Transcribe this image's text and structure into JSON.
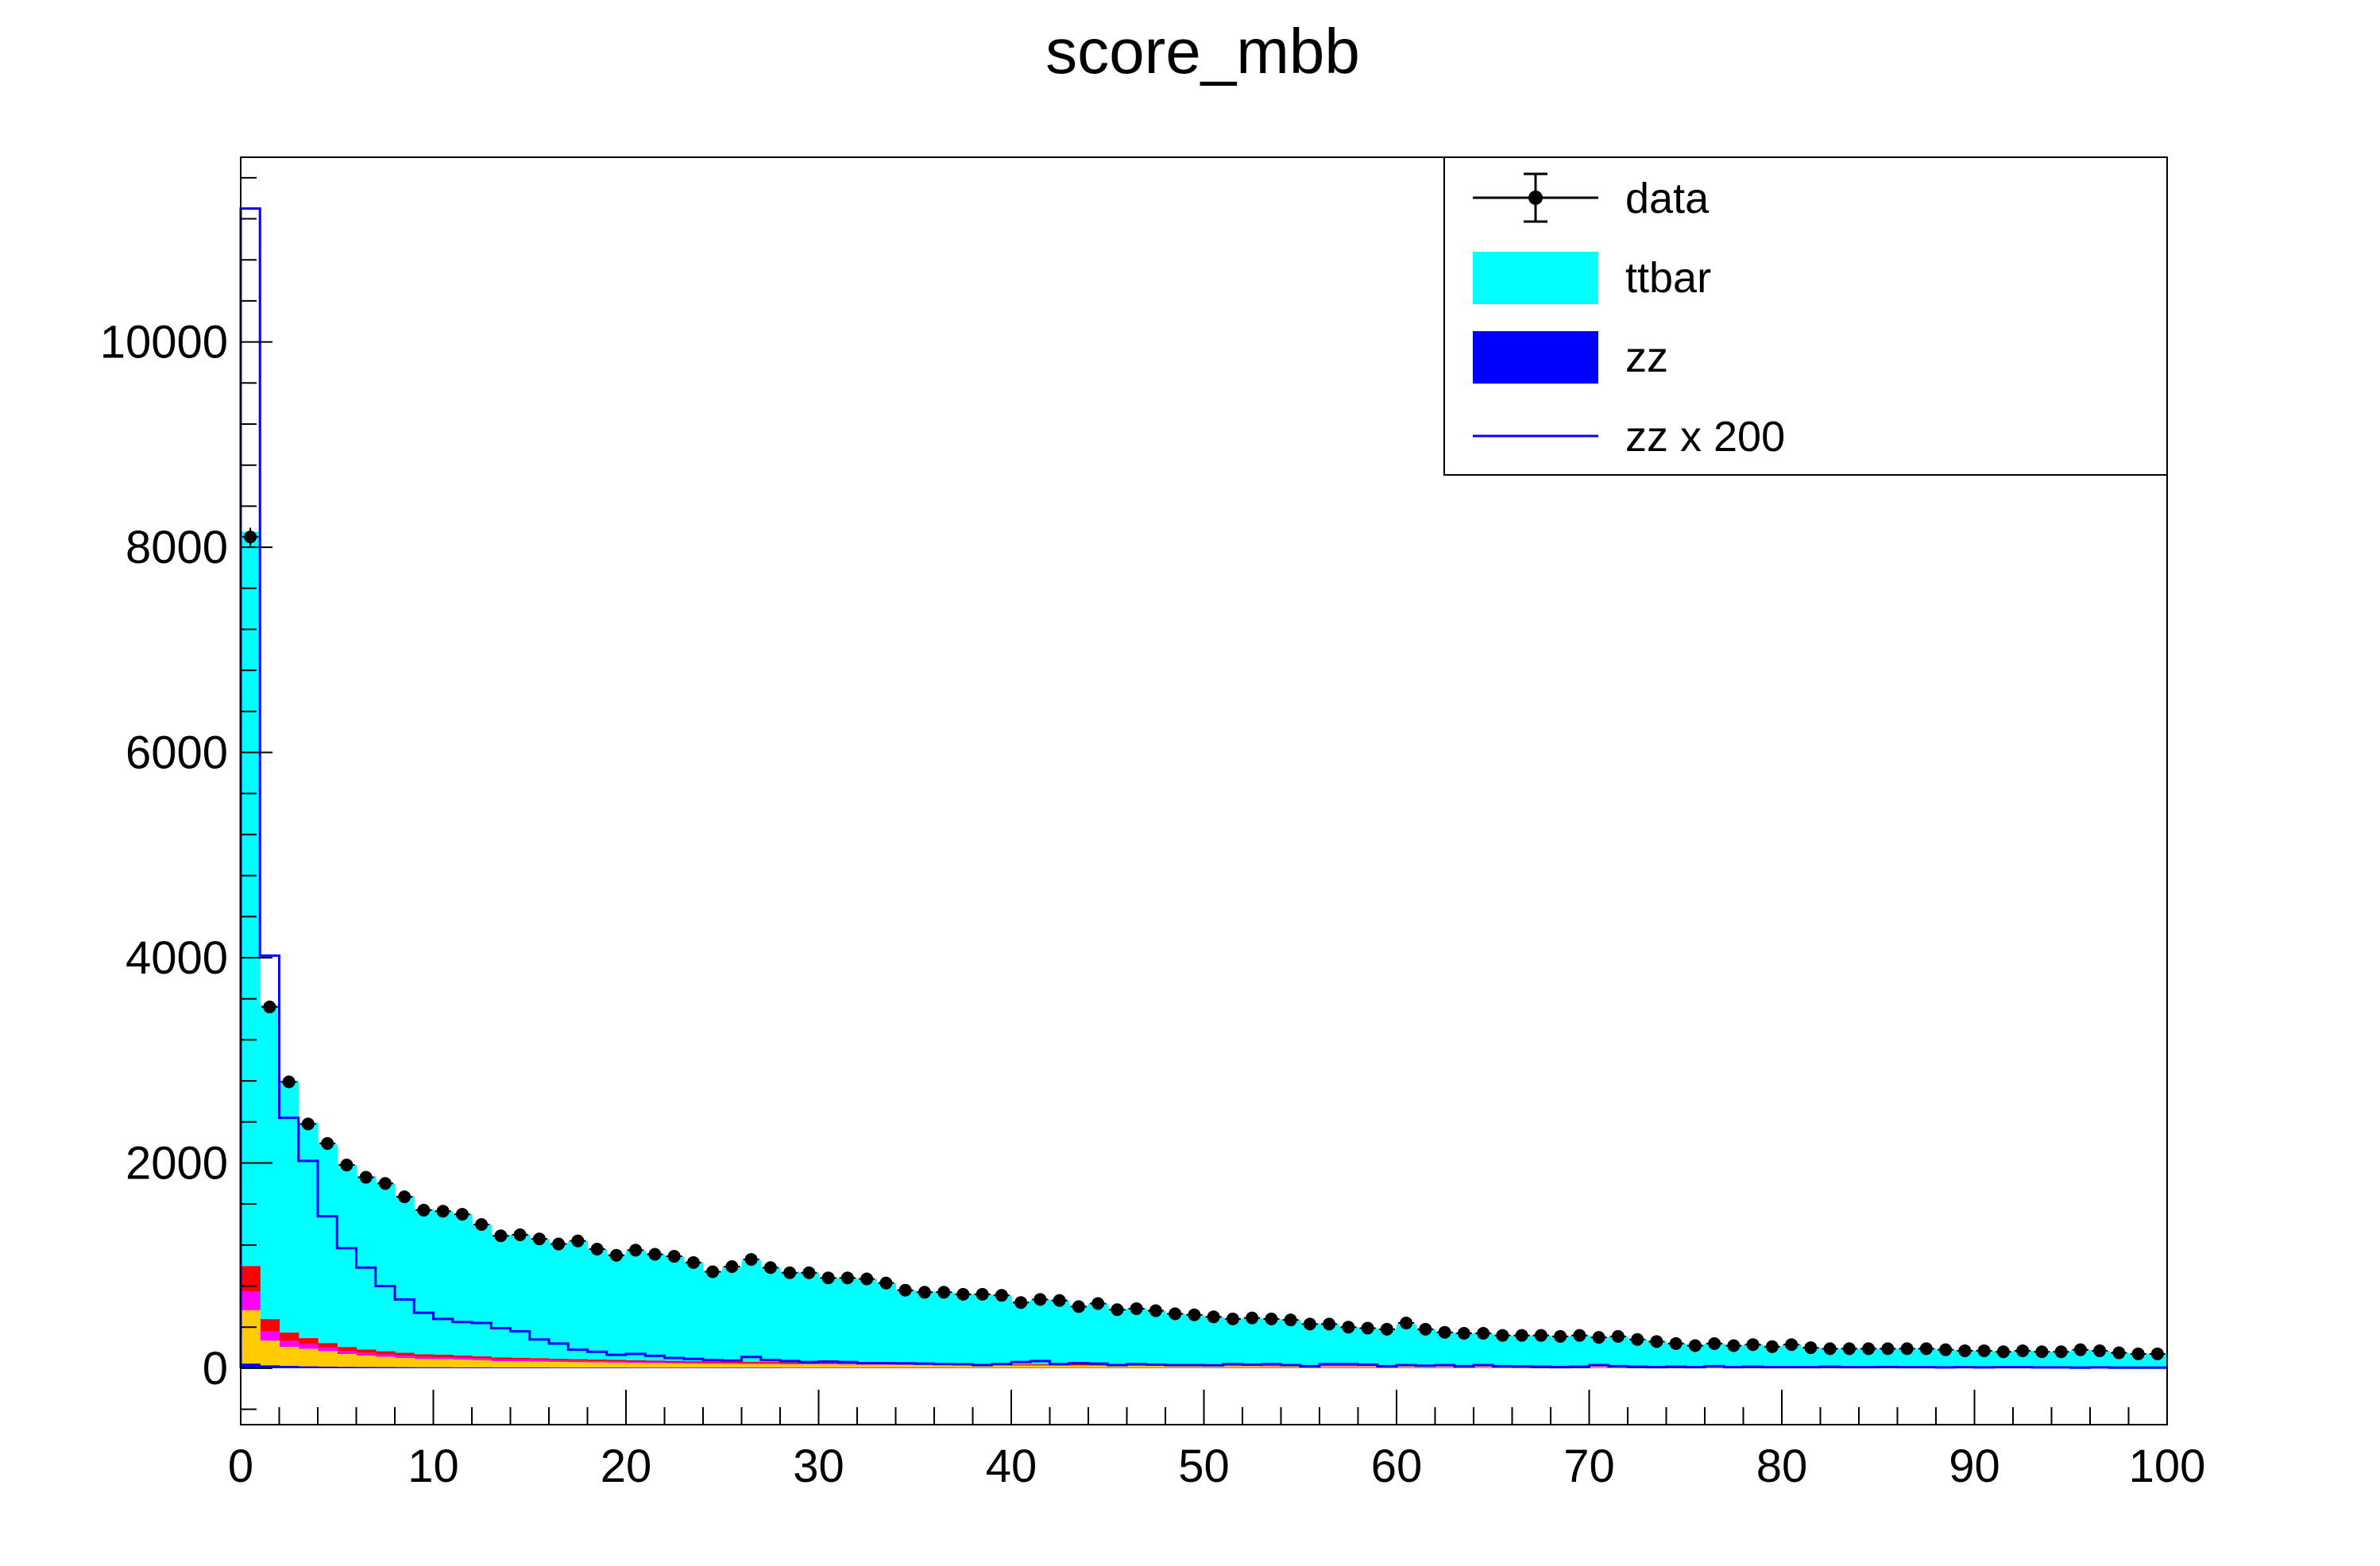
{
  "chart_data": {
    "type": "bar",
    "title": "score_mbb",
    "xlabel": "",
    "ylabel": "",
    "xlim": [
      0,
      100
    ],
    "ylim": [
      -550,
      11800
    ],
    "bin_width": 1,
    "x_ticks": [
      "0",
      "10",
      "20",
      "30",
      "40",
      "50",
      "60",
      "70",
      "80",
      "90",
      "100"
    ],
    "y_ticks": [
      "0",
      "2000",
      "4000",
      "6000",
      "8000",
      "10000"
    ],
    "legend_position": "top-right",
    "legend": [
      {
        "label": "data",
        "style": "marker"
      },
      {
        "label": "ttbar",
        "style": "fill"
      },
      {
        "label": "zz",
        "style": "fill"
      },
      {
        "label": "zz x 200",
        "style": "line"
      }
    ],
    "colors": {
      "ttbar": "#00ffff",
      "zz": "#0000ff",
      "zz_x200": "#0000ff",
      "red": "#ff0000",
      "magenta": "#ff00ff",
      "orange": "#ffcc00",
      "data": "#000000"
    },
    "data": [
      8100,
      3520,
      2790,
      2380,
      2190,
      1980,
      1860,
      1800,
      1670,
      1540,
      1530,
      1500,
      1400,
      1290,
      1300,
      1260,
      1210,
      1240,
      1160,
      1100,
      1150,
      1110,
      1090,
      1030,
      940,
      990,
      1060,
      980,
      930,
      930,
      880,
      880,
      870,
      830,
      760,
      740,
      740,
      720,
      720,
      710,
      640,
      670,
      660,
      600,
      630,
      570,
      580,
      560,
      530,
      520,
      500,
      480,
      490,
      480,
      470,
      430,
      430,
      400,
      390,
      380,
      440,
      380,
      350,
      340,
      340,
      320,
      320,
      320,
      310,
      320,
      300,
      310,
      280,
      260,
      240,
      220,
      240,
      220,
      230,
      210,
      230,
      200,
      190,
      190,
      190,
      190,
      190,
      190,
      180,
      170,
      170,
      160,
      170,
      160,
      160,
      180,
      170,
      150,
      140,
      140
    ],
    "stack": {
      "zz": [
        45,
        28,
        22,
        18,
        15,
        13,
        12,
        11,
        10,
        9,
        9,
        8,
        8,
        7,
        7,
        7,
        6,
        6,
        6,
        6,
        5,
        5,
        5,
        5,
        5,
        5,
        5,
        5,
        4,
        4,
        4,
        4,
        4,
        4,
        4,
        4,
        4,
        3,
        3,
        3,
        3,
        3,
        3,
        3,
        3,
        3,
        3,
        3,
        3,
        3,
        3,
        3,
        3,
        3,
        3,
        3,
        3,
        3,
        3,
        3,
        3,
        3,
        3,
        3,
        3,
        3,
        3,
        3,
        3,
        3,
        3,
        3,
        3,
        3,
        3,
        3,
        3,
        3,
        3,
        3,
        3,
        3,
        3,
        3,
        3,
        3,
        3,
        3,
        3,
        3,
        3,
        3,
        3,
        3,
        3,
        3,
        3,
        3,
        3,
        3
      ],
      "orange": [
        520,
        240,
        185,
        170,
        150,
        125,
        110,
        100,
        90,
        80,
        80,
        75,
        70,
        62,
        60,
        58,
        55,
        52,
        50,
        48,
        46,
        44,
        42,
        40,
        38,
        37,
        36,
        35,
        34,
        33,
        32,
        31,
        30,
        29,
        28,
        27,
        26,
        25,
        24,
        23,
        22,
        22,
        21,
        21,
        20,
        20,
        19,
        19,
        18,
        18,
        17,
        17,
        17,
        16,
        16,
        16,
        15,
        15,
        15,
        14,
        14,
        14,
        13,
        13,
        13,
        12,
        12,
        12,
        12,
        11,
        11,
        11,
        11,
        10,
        10,
        10,
        10,
        10,
        9,
        9,
        9,
        9,
        9,
        8,
        8,
        8,
        8,
        8,
        8,
        7,
        7,
        7,
        7,
        7,
        7,
        7,
        7,
        6,
        6,
        6
      ],
      "magenta": [
        180,
        90,
        60,
        45,
        35,
        30,
        26,
        24,
        22,
        20,
        19,
        18,
        17,
        16,
        15,
        14,
        13,
        13,
        12,
        12,
        11,
        11,
        10,
        10,
        10,
        9,
        9,
        9,
        9,
        8,
        8,
        8,
        8,
        8,
        7,
        7,
        7,
        7,
        7,
        7,
        6,
        6,
        6,
        6,
        6,
        6,
        6,
        5,
        5,
        5,
        5,
        5,
        5,
        5,
        5,
        5,
        5,
        5,
        4,
        4,
        4,
        4,
        4,
        4,
        4,
        4,
        4,
        4,
        4,
        4,
        4,
        4,
        4,
        4,
        3,
        3,
        3,
        3,
        3,
        3,
        3,
        3,
        3,
        3,
        3,
        3,
        3,
        3,
        3,
        3,
        3,
        3,
        3,
        3,
        3,
        3,
        3,
        3,
        3,
        3
      ],
      "red": [
        250,
        120,
        80,
        60,
        45,
        38,
        34,
        30,
        28,
        26,
        24,
        22,
        21,
        20,
        19,
        18,
        17,
        17,
        16,
        15,
        15,
        14,
        14,
        13,
        13,
        12,
        12,
        12,
        11,
        11,
        11,
        10,
        10,
        10,
        10,
        9,
        9,
        9,
        9,
        9,
        8,
        8,
        8,
        8,
        8,
        8,
        7,
        7,
        7,
        7,
        7,
        7,
        7,
        6,
        6,
        6,
        6,
        6,
        6,
        6,
        6,
        6,
        5,
        5,
        5,
        5,
        5,
        5,
        5,
        5,
        5,
        5,
        5,
        5,
        5,
        4,
        4,
        4,
        4,
        4,
        4,
        4,
        4,
        4,
        4,
        4,
        4,
        4,
        4,
        4,
        4,
        4,
        4,
        4,
        4,
        4,
        4,
        4,
        4,
        4
      ],
      "ttbar_total": [
        8150,
        3540,
        2800,
        2390,
        2180,
        1980,
        1870,
        1800,
        1680,
        1550,
        1530,
        1500,
        1400,
        1300,
        1300,
        1260,
        1220,
        1240,
        1160,
        1110,
        1150,
        1110,
        1090,
        1030,
        950,
        990,
        1050,
        980,
        940,
        930,
        880,
        880,
        870,
        830,
        760,
        750,
        740,
        720,
        720,
        710,
        650,
        670,
        660,
        610,
        630,
        580,
        580,
        560,
        530,
        520,
        500,
        480,
        490,
        480,
        470,
        440,
        430,
        400,
        390,
        380,
        430,
        380,
        350,
        340,
        340,
        320,
        320,
        320,
        310,
        320,
        300,
        310,
        280,
        260,
        240,
        230,
        240,
        220,
        230,
        210,
        230,
        200,
        190,
        190,
        190,
        190,
        190,
        190,
        180,
        170,
        170,
        160,
        170,
        160,
        160,
        180,
        170,
        150,
        140,
        140
      ]
    },
    "zz_x200": [
      11300,
      4020,
      2440,
      2020,
      1480,
      1170,
      980,
      800,
      670,
      540,
      480,
      450,
      440,
      390,
      360,
      280,
      240,
      180,
      160,
      130,
      140,
      120,
      100,
      90,
      80,
      75,
      110,
      80,
      70,
      60,
      65,
      60,
      50,
      50,
      48,
      45,
      40,
      38,
      30,
      40,
      60,
      70,
      40,
      50,
      45,
      30,
      40,
      35,
      30,
      30,
      28,
      40,
      35,
      40,
      30,
      20,
      40,
      40,
      35,
      20,
      30,
      25,
      30,
      20,
      30,
      20,
      18,
      15,
      10,
      15,
      30,
      20,
      15,
      10,
      15,
      10,
      20,
      10,
      15,
      10,
      10,
      10,
      15,
      10,
      10,
      12,
      10,
      10,
      8,
      10,
      8,
      10,
      10,
      8,
      8,
      5,
      8,
      5,
      5,
      5
    ]
  }
}
